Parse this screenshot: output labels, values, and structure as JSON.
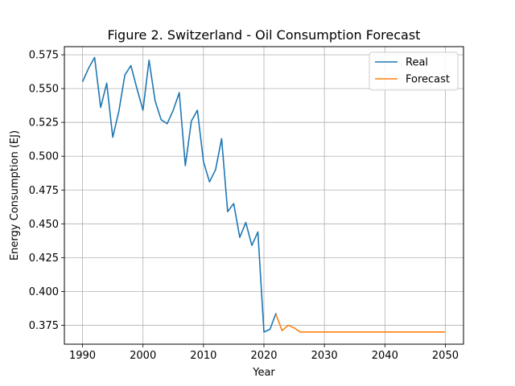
{
  "chart_data": {
    "type": "line",
    "title": "Figure 2. Switzerland - Oil Consumption Forecast",
    "xlabel": "Year",
    "ylabel": "Energy Consumption (EJ)",
    "xlim": [
      1987,
      2053
    ],
    "ylim": [
      0.361,
      0.581
    ],
    "x_ticks": [
      1990,
      2000,
      2010,
      2020,
      2030,
      2040,
      2050
    ],
    "y_ticks": [
      0.375,
      0.4,
      0.425,
      0.45,
      0.475,
      0.5,
      0.525,
      0.55,
      0.575
    ],
    "grid": true,
    "legend_position": "top-right",
    "series": [
      {
        "name": "Real",
        "color": "#1f77b4",
        "x": [
          1990,
          1991,
          1992,
          1993,
          1994,
          1995,
          1996,
          1997,
          1998,
          1999,
          2000,
          2001,
          2002,
          2003,
          2004,
          2005,
          2006,
          2007,
          2008,
          2009,
          2010,
          2011,
          2012,
          2013,
          2014,
          2015,
          2016,
          2017,
          2018,
          2019,
          2020,
          2021,
          2022
        ],
        "y": [
          0.555,
          0.565,
          0.573,
          0.536,
          0.554,
          0.514,
          0.533,
          0.56,
          0.567,
          0.55,
          0.534,
          0.571,
          0.541,
          0.527,
          0.524,
          0.534,
          0.547,
          0.493,
          0.526,
          0.534,
          0.496,
          0.481,
          0.49,
          0.513,
          0.459,
          0.465,
          0.44,
          0.451,
          0.434,
          0.444,
          0.37,
          0.372,
          0.384
        ]
      },
      {
        "name": "Forecast",
        "color": "#ff7f0e",
        "x": [
          2022,
          2023,
          2024,
          2025,
          2026,
          2027,
          2028,
          2029,
          2030,
          2031,
          2032,
          2033,
          2034,
          2035,
          2036,
          2037,
          2038,
          2039,
          2040,
          2041,
          2042,
          2043,
          2044,
          2045,
          2046,
          2047,
          2048,
          2049,
          2050
        ],
        "y": [
          0.383,
          0.371,
          0.375,
          0.373,
          0.37,
          0.37,
          0.37,
          0.37,
          0.37,
          0.37,
          0.37,
          0.37,
          0.37,
          0.37,
          0.37,
          0.37,
          0.37,
          0.37,
          0.37,
          0.37,
          0.37,
          0.37,
          0.37,
          0.37,
          0.37,
          0.37,
          0.37,
          0.37,
          0.37
        ]
      }
    ]
  }
}
